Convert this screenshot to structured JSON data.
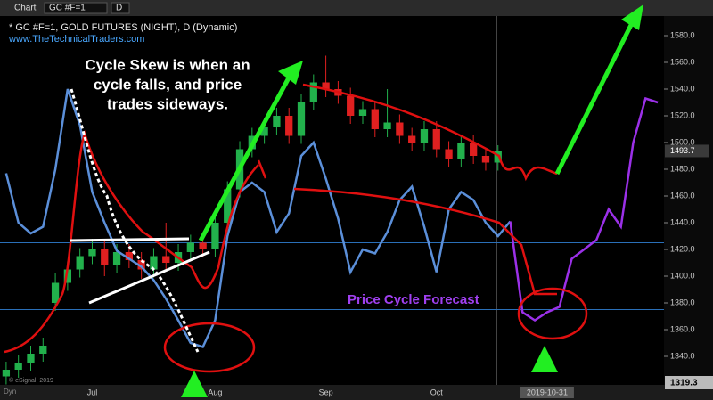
{
  "toolbar": {
    "app": "Chart",
    "symbol": "GC #F=1",
    "interval": "D"
  },
  "chart_data": {
    "type": "candlestick",
    "title": "* GC #F=1, GOLD FUTURES (NIGHT), D (Dynamic)",
    "subtitle": "www.TheTechnicalTraders.com",
    "annotations": {
      "skew": [
        "Cycle Skew is when an",
        "cycle falls, and price",
        "trades sideways."
      ],
      "forecast": "Price Cycle Forecast"
    },
    "categories": [
      null,
      null,
      null,
      null,
      null,
      null,
      null,
      "Jul",
      null,
      null,
      null,
      null,
      null,
      null,
      null,
      null,
      null,
      "Aug",
      null,
      null,
      null,
      null,
      null,
      null,
      null,
      null,
      "Sep",
      null,
      null,
      null,
      null,
      null,
      null,
      null,
      null,
      "Oct",
      null,
      null,
      null,
      null,
      null,
      null,
      null,
      null,
      "2019-10-31",
      null,
      null,
      null,
      null,
      null,
      null,
      null,
      null,
      null
    ],
    "open": [
      1325,
      1330,
      1335,
      1342,
      1380,
      1395,
      1405,
      1415,
      1420,
      1408,
      1418,
      1412,
      1405,
      1415,
      1410,
      1418,
      1425,
      1420,
      1440,
      1465,
      1495,
      1505,
      1512,
      1520,
      1505,
      1530,
      1545,
      1540,
      1535,
      1520,
      1525,
      1510,
      1515,
      1505,
      1500,
      1510,
      1495,
      1488,
      1500,
      1490,
      1485,
      null,
      null,
      null,
      null,
      null,
      null,
      null,
      null,
      null,
      null,
      null,
      null,
      null
    ],
    "high": [
      1336,
      1341,
      1348,
      1354,
      1402,
      1411,
      1421,
      1428,
      1426,
      1424,
      1424,
      1418,
      1421,
      1440,
      1424,
      1431,
      1431,
      1446,
      1471,
      1501,
      1511,
      1518,
      1526,
      1526,
      1536,
      1551,
      1565,
      1546,
      1541,
      1531,
      1531,
      1540,
      1521,
      1511,
      1516,
      1516,
      1501,
      1506,
      1506,
      1496,
      1498,
      null,
      null,
      null,
      null,
      null,
      null,
      null,
      null,
      null,
      null,
      null,
      null,
      null
    ],
    "low": [
      1319,
      1324,
      1329,
      1336,
      1374,
      1389,
      1399,
      1409,
      1400,
      1402,
      1406,
      1398,
      1399,
      1404,
      1404,
      1412,
      1414,
      1414,
      1434,
      1459,
      1489,
      1499,
      1506,
      1499,
      1499,
      1524,
      1534,
      1529,
      1514,
      1514,
      1504,
      1504,
      1499,
      1494,
      1494,
      1489,
      1482,
      1482,
      1484,
      1479,
      1479,
      null,
      null,
      null,
      null,
      null,
      null,
      null,
      null,
      null,
      null,
      null,
      null,
      null
    ],
    "close": [
      1330,
      1335,
      1342,
      1348,
      1395,
      1405,
      1415,
      1420,
      1408,
      1418,
      1412,
      1405,
      1415,
      1410,
      1418,
      1425,
      1420,
      1440,
      1465,
      1495,
      1505,
      1512,
      1520,
      1505,
      1530,
      1545,
      1540,
      1535,
      1520,
      1525,
      1510,
      1515,
      1505,
      1500,
      1510,
      1495,
      1488,
      1500,
      1490,
      1485,
      1493.7,
      null,
      null,
      null,
      null,
      null,
      null,
      null,
      null,
      null,
      null,
      null,
      null,
      null
    ],
    "up_color": "#22b14c",
    "down_color": "#e02020",
    "series": [
      {
        "color": "#5b8fd9",
        "values": [
          1477,
          1440,
          1432,
          1437,
          1480,
          1540,
          1513,
          1463,
          1440,
          1419,
          1413,
          1407,
          1397,
          1383,
          1367,
          1350,
          1347,
          1367,
          1430,
          1463,
          1470,
          1463,
          1433,
          1447,
          1490,
          1500,
          1473,
          1443,
          1403,
          1420,
          1417,
          1433,
          1457,
          1467,
          1437,
          1403,
          1450,
          1463,
          1457,
          1440,
          1430,
          1441,
          null,
          null,
          null,
          null,
          null,
          null,
          null,
          null,
          null,
          null,
          null,
          null
        ]
      },
      {
        "color": "#9b30e8",
        "values": [
          null,
          null,
          null,
          null,
          null,
          null,
          null,
          null,
          null,
          null,
          null,
          null,
          null,
          null,
          null,
          null,
          null,
          null,
          null,
          null,
          null,
          null,
          null,
          null,
          null,
          null,
          null,
          null,
          null,
          null,
          null,
          null,
          null,
          null,
          null,
          null,
          null,
          null,
          null,
          null,
          null,
          1441,
          1373,
          1367,
          1373,
          1377,
          1413,
          1420,
          1427,
          1450,
          1437,
          1500,
          1533,
          1530
        ]
      }
    ],
    "reference_lines": [
      1425,
      1375
    ],
    "last_price": {
      "value": 1493.7,
      "label": "1493.7"
    },
    "scale_low": {
      "value": 1319.3,
      "label": "1319.3"
    },
    "ylim": [
      1318,
      1603
    ],
    "yticks": [
      {
        "value": 1340,
        "label": "1340.0"
      },
      {
        "value": 1360,
        "label": "1360.0"
      },
      {
        "value": 1380,
        "label": "1380.0"
      },
      {
        "value": 1400,
        "label": "1400.0"
      },
      {
        "value": 1420,
        "label": "1420.0"
      },
      {
        "value": 1440,
        "label": "1440.0"
      },
      {
        "value": 1460,
        "label": "1460.0"
      },
      {
        "value": 1480,
        "label": "1480.0"
      },
      {
        "value": 1500,
        "label": "1500.0"
      },
      {
        "value": 1520,
        "label": "1520.0"
      },
      {
        "value": 1540,
        "label": "1540.0"
      },
      {
        "value": 1560,
        "label": "1560.0"
      },
      {
        "value": 1580,
        "label": "1580.0"
      }
    ]
  },
  "footer": {
    "mode": "Dyn",
    "copyright": "© eSignal, 2019"
  }
}
